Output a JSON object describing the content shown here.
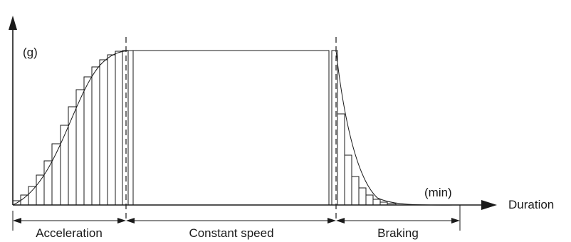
{
  "labels": {
    "y_unit": "(g)",
    "x_unit": "(min)",
    "x_axis": "Duration"
  },
  "phases": [
    {
      "id": "acceleration",
      "label": "Acceleration"
    },
    {
      "id": "constant",
      "label": "Constant speed"
    },
    {
      "id": "braking",
      "label": "Braking"
    }
  ]
}
